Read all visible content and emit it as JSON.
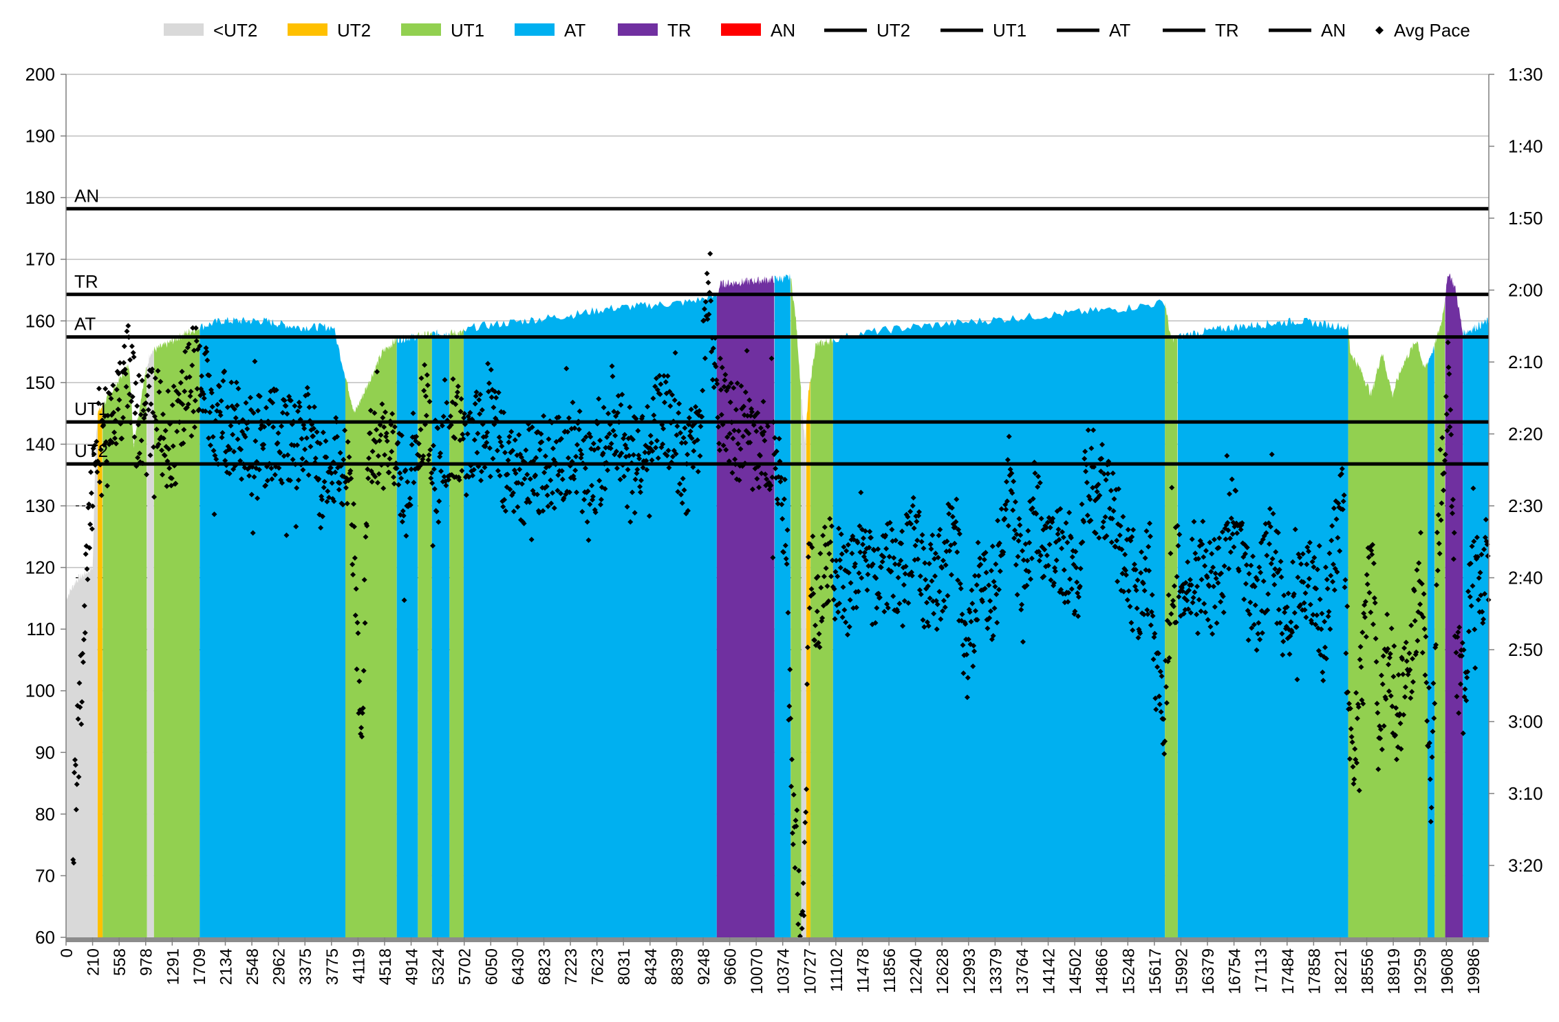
{
  "chart_data": {
    "type": "area",
    "title": "",
    "xlabel": "",
    "ylabel": "",
    "ylim": [
      60,
      200
    ],
    "xlim": [
      0,
      20220
    ],
    "y_ticks": [
      "60",
      "70",
      "80",
      "90",
      "100",
      "110",
      "120",
      "130",
      "140",
      "150",
      "160",
      "170",
      "180",
      "190",
      "200"
    ],
    "y2_ticks": [
      "1:30",
      "1:40",
      "1:50",
      "2:00",
      "2:10",
      "2:20",
      "2:30",
      "2:40",
      "2:50",
      "3:00",
      "3:10",
      "3:20"
    ],
    "y2_range_seconds": [
      210,
      90
    ],
    "x_ticks": [
      "0",
      "210",
      "558",
      "978",
      "1291",
      "1709",
      "2134",
      "2548",
      "2962",
      "3375",
      "3775",
      "4119",
      "4518",
      "4914",
      "5324",
      "5702",
      "6050",
      "6430",
      "6823",
      "7223",
      "7623",
      "8031",
      "8434",
      "8839",
      "9248",
      "9660",
      "10070",
      "10374",
      "10727",
      "11102",
      "11478",
      "11856",
      "12240",
      "12628",
      "12993",
      "13379",
      "13764",
      "14142",
      "14502",
      "14866",
      "15248",
      "15617",
      "15992",
      "16379",
      "16754",
      "17113",
      "17484",
      "17858",
      "18221",
      "18556",
      "18919",
      "19259",
      "19608",
      "19986"
    ],
    "legend_position": "top",
    "legend": [
      {
        "label": "<UT2",
        "kind": "area",
        "color": "#d9d9d9"
      },
      {
        "label": "UT2",
        "kind": "area",
        "color": "#ffc000"
      },
      {
        "label": "UT1",
        "kind": "area",
        "color": "#92d050"
      },
      {
        "label": "AT",
        "kind": "area",
        "color": "#00b0f0"
      },
      {
        "label": "TR",
        "kind": "area",
        "color": "#7030a0"
      },
      {
        "label": "AN",
        "kind": "area",
        "color": "#ff0000"
      },
      {
        "label": "UT2",
        "kind": "line",
        "color": "#000000"
      },
      {
        "label": "UT1",
        "kind": "line",
        "color": "#000000"
      },
      {
        "label": "AT",
        "kind": "line",
        "color": "#000000"
      },
      {
        "label": "TR",
        "kind": "line",
        "color": "#000000"
      },
      {
        "label": "AN",
        "kind": "line",
        "color": "#000000"
      },
      {
        "label": "Avg Pace",
        "kind": "marker",
        "color": "#000000"
      }
    ],
    "zone_lines": [
      {
        "label": "UT2",
        "value": 136.8
      },
      {
        "label": "UT1",
        "value": 143.6
      },
      {
        "label": "AT",
        "value": 157.4
      },
      {
        "label": "TR",
        "value": 164.3
      },
      {
        "label": "AN",
        "value": 178.2
      }
    ],
    "pace_gridlines_seconds": [
      150,
      160,
      170
    ],
    "heart_rate_profile": [
      [
        0,
        115
      ],
      [
        150,
        118
      ],
      [
        380,
        120
      ],
      [
        420,
        140
      ],
      [
        450,
        145
      ],
      [
        900,
        153
      ],
      [
        960,
        140
      ],
      [
        1100,
        150
      ],
      [
        1200,
        155
      ],
      [
        1400,
        156
      ],
      [
        1700,
        158
      ],
      [
        1900,
        159
      ],
      [
        2200,
        160
      ],
      [
        2800,
        160
      ],
      [
        3300,
        159
      ],
      [
        3800,
        159
      ],
      [
        3950,
        152
      ],
      [
        4100,
        145
      ],
      [
        4300,
        150
      ],
      [
        4500,
        155
      ],
      [
        4700,
        157
      ],
      [
        5300,
        158
      ],
      [
        5600,
        158
      ],
      [
        5800,
        159
      ],
      [
        6500,
        160
      ],
      [
        7200,
        161
      ],
      [
        7700,
        162
      ],
      [
        8800,
        163
      ],
      [
        9248,
        164
      ],
      [
        9300,
        166
      ],
      [
        10300,
        167
      ],
      [
        10374,
        160
      ],
      [
        10450,
        148
      ],
      [
        10500,
        140
      ],
      [
        10550,
        148
      ],
      [
        10650,
        156
      ],
      [
        10900,
        157
      ],
      [
        11300,
        158
      ],
      [
        12000,
        159
      ],
      [
        13000,
        160
      ],
      [
        14000,
        161
      ],
      [
        15000,
        162
      ],
      [
        15617,
        163
      ],
      [
        15660,
        160
      ],
      [
        15700,
        157
      ],
      [
        16000,
        158
      ],
      [
        16600,
        159
      ],
      [
        17500,
        160
      ],
      [
        18221,
        159
      ],
      [
        18250,
        155
      ],
      [
        18400,
        152
      ],
      [
        18550,
        148
      ],
      [
        18700,
        155
      ],
      [
        18850,
        148
      ],
      [
        19000,
        153
      ],
      [
        19200,
        157
      ],
      [
        19300,
        152
      ],
      [
        19450,
        156
      ],
      [
        19550,
        160
      ],
      [
        19650,
        168
      ],
      [
        19750,
        165
      ],
      [
        19850,
        158
      ],
      [
        20220,
        160
      ]
    ],
    "hr_color_zones": [
      {
        "zone": "<UT2",
        "from": 0,
        "to": 450
      },
      {
        "zone": "UT2",
        "from": 450,
        "to": 520
      },
      {
        "zone": "UT1",
        "from": 520,
        "to": 1150
      },
      {
        "zone": "<UT2",
        "from": 1150,
        "to": 1250
      },
      {
        "zone": "UT1",
        "from": 1250,
        "to": 1900
      },
      {
        "zone": "AT",
        "from": 1900,
        "to": 3970
      },
      {
        "zone": "UT1",
        "from": 3970,
        "to": 4700
      },
      {
        "zone": "AT",
        "from": 4700,
        "to": 5000
      },
      {
        "zone": "UT1",
        "from": 5000,
        "to": 5200
      },
      {
        "zone": "AT",
        "from": 5200,
        "to": 5450
      },
      {
        "zone": "UT1",
        "from": 5450,
        "to": 5650
      },
      {
        "zone": "AT",
        "from": 5650,
        "to": 9248
      },
      {
        "zone": "TR",
        "from": 9248,
        "to": 10070
      },
      {
        "zone": "AT",
        "from": 10070,
        "to": 10300
      },
      {
        "zone": "UT1",
        "from": 10300,
        "to": 10450
      },
      {
        "zone": "<UT2",
        "from": 10450,
        "to": 10520
      },
      {
        "zone": "UT2",
        "from": 10520,
        "to": 10580
      },
      {
        "zone": "UT1",
        "from": 10580,
        "to": 10900
      },
      {
        "zone": "AT",
        "from": 10900,
        "to": 15617
      },
      {
        "zone": "UT1",
        "from": 15617,
        "to": 15800
      },
      {
        "zone": "AT",
        "from": 15800,
        "to": 18221
      },
      {
        "zone": "UT1",
        "from": 18221,
        "to": 19350
      },
      {
        "zone": "AT",
        "from": 19350,
        "to": 19450
      },
      {
        "zone": "UT1",
        "from": 19450,
        "to": 19600
      },
      {
        "zone": "TR",
        "from": 19600,
        "to": 19850
      },
      {
        "zone": "AT",
        "from": 19850,
        "to": 20220
      }
    ],
    "avg_pace_profile_seconds": [
      [
        100,
        196
      ],
      [
        150,
        186
      ],
      [
        200,
        178
      ],
      [
        300,
        160
      ],
      [
        400,
        142
      ],
      [
        500,
        140
      ],
      [
        600,
        141
      ],
      [
        800,
        136
      ],
      [
        900,
        130
      ],
      [
        978,
        137
      ],
      [
        1100,
        140
      ],
      [
        1291,
        135
      ],
      [
        1400,
        141
      ],
      [
        1600,
        140
      ],
      [
        1709,
        134
      ],
      [
        1900,
        131
      ],
      [
        2134,
        137
      ],
      [
        2548,
        141
      ],
      [
        2962,
        140
      ],
      [
        3375,
        141
      ],
      [
        3500,
        139
      ],
      [
        3600,
        146
      ],
      [
        3700,
        147
      ],
      [
        3775,
        146
      ],
      [
        3900,
        143
      ],
      [
        4050,
        147
      ],
      [
        4119,
        166
      ],
      [
        4200,
        180
      ],
      [
        4300,
        142
      ],
      [
        4518,
        142
      ],
      [
        4700,
        141
      ],
      [
        4800,
        149
      ],
      [
        4914,
        143
      ],
      [
        5100,
        136
      ],
      [
        5200,
        144
      ],
      [
        5324,
        146
      ],
      [
        5500,
        139
      ],
      [
        5702,
        142
      ],
      [
        5900,
        140
      ],
      [
        6050,
        137
      ],
      [
        6200,
        143
      ],
      [
        6430,
        147
      ],
      [
        6600,
        145
      ],
      [
        6823,
        144
      ],
      [
        7000,
        143
      ],
      [
        7223,
        141
      ],
      [
        7400,
        146
      ],
      [
        7623,
        143
      ],
      [
        7800,
        138
      ],
      [
        8031,
        145
      ],
      [
        8200,
        142
      ],
      [
        8434,
        136
      ],
      [
        8600,
        139
      ],
      [
        8839,
        145
      ],
      [
        9000,
        138
      ],
      [
        9100,
        122
      ],
      [
        9200,
        126
      ],
      [
        9248,
        135
      ],
      [
        9400,
        139
      ],
      [
        9660,
        140
      ],
      [
        9800,
        142
      ],
      [
        10070,
        143
      ],
      [
        10150,
        144
      ],
      [
        10250,
        158
      ],
      [
        10300,
        185
      ],
      [
        10374,
        198
      ],
      [
        10450,
        208
      ],
      [
        10500,
        200
      ],
      [
        10550,
        162
      ],
      [
        10600,
        162
      ],
      [
        10727,
        163
      ],
      [
        10800,
        157
      ],
      [
        11102,
        162
      ],
      [
        11300,
        155
      ],
      [
        11478,
        160
      ],
      [
        11700,
        158
      ],
      [
        11856,
        161
      ],
      [
        12050,
        154
      ],
      [
        12240,
        162
      ],
      [
        12450,
        159
      ],
      [
        12628,
        152
      ],
      [
        12800,
        172
      ],
      [
        12993,
        158
      ],
      [
        13200,
        163
      ],
      [
        13379,
        145
      ],
      [
        13600,
        162
      ],
      [
        13764,
        150
      ],
      [
        13900,
        155
      ],
      [
        14142,
        157
      ],
      [
        14400,
        159
      ],
      [
        14502,
        145
      ],
      [
        14700,
        148
      ],
      [
        14866,
        151
      ],
      [
        15000,
        156
      ],
      [
        15248,
        162
      ],
      [
        15400,
        158
      ],
      [
        15500,
        174
      ],
      [
        15550,
        180
      ],
      [
        15617,
        178
      ],
      [
        15700,
        160
      ],
      [
        15992,
        158
      ],
      [
        16150,
        159
      ],
      [
        16379,
        162
      ],
      [
        16550,
        150
      ],
      [
        16754,
        160
      ],
      [
        16900,
        165
      ],
      [
        17113,
        156
      ],
      [
        17300,
        163
      ],
      [
        17484,
        162
      ],
      [
        17700,
        160
      ],
      [
        17858,
        168
      ],
      [
        18000,
        158
      ],
      [
        18150,
        148
      ],
      [
        18221,
        180
      ],
      [
        18300,
        185
      ],
      [
        18400,
        176
      ],
      [
        18556,
        156
      ],
      [
        18650,
        182
      ],
      [
        18800,
        170
      ],
      [
        18919,
        180
      ],
      [
        19100,
        172
      ],
      [
        19259,
        160
      ],
      [
        19400,
        188
      ],
      [
        19500,
        155
      ],
      [
        19600,
        138
      ],
      [
        19650,
        130
      ],
      [
        19700,
        146
      ],
      [
        19750,
        170
      ],
      [
        19850,
        176
      ],
      [
        19986,
        162
      ],
      [
        20100,
        160
      ],
      [
        20220,
        158
      ]
    ]
  }
}
